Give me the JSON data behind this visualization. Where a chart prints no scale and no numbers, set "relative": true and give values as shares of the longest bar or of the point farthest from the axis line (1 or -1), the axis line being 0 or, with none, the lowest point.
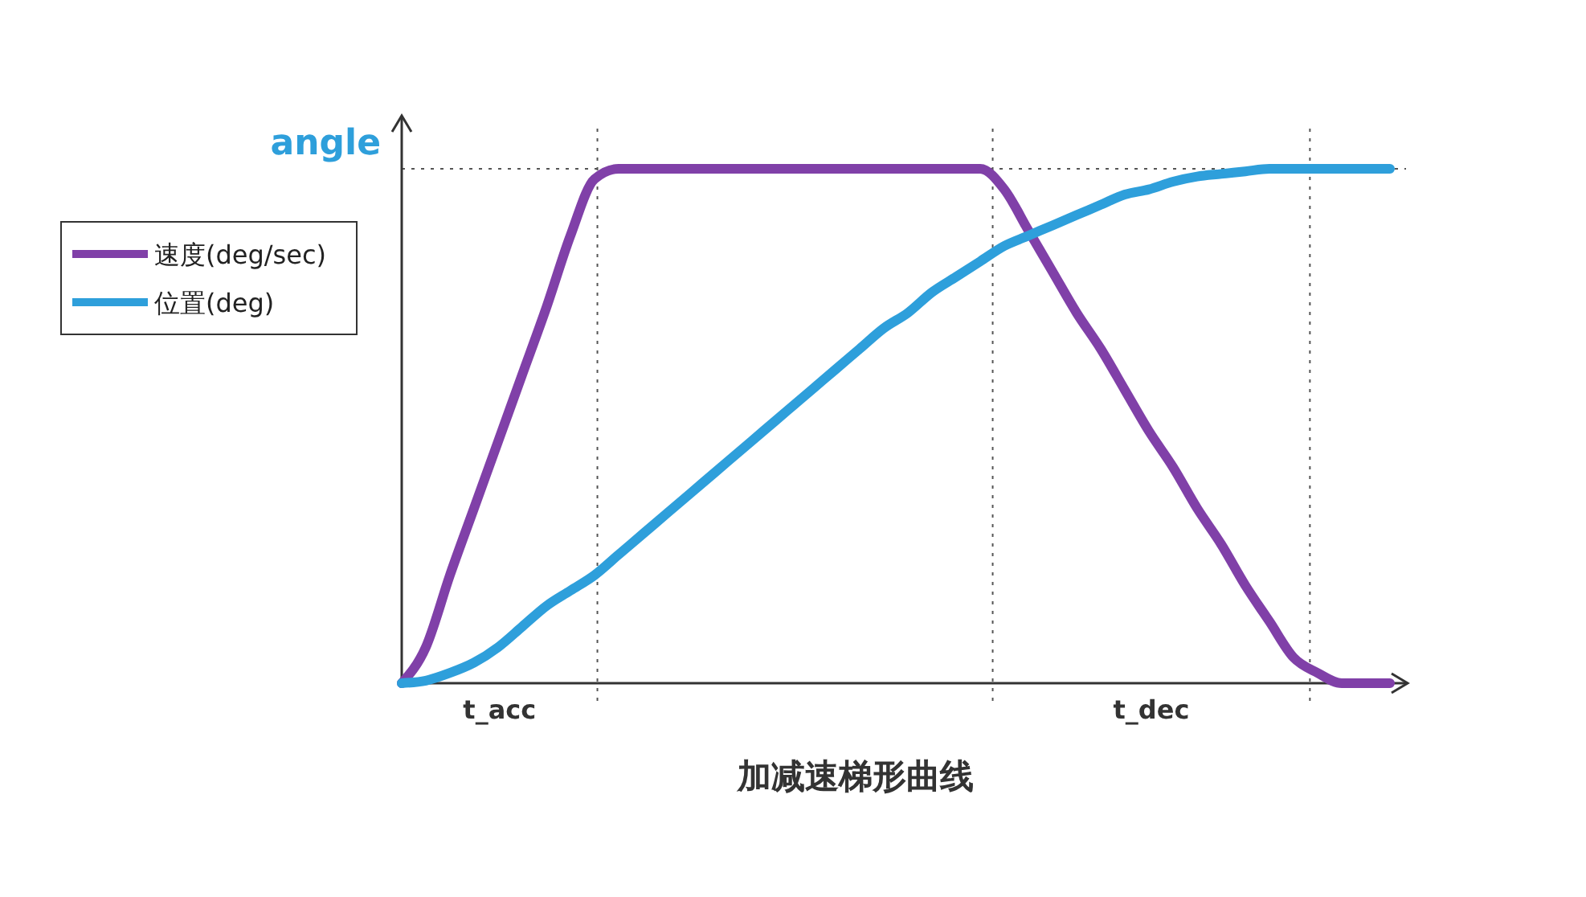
{
  "chart_data": {
    "type": "line",
    "title": "加减速梯形曲线",
    "ylabel": "angle",
    "relative": true,
    "categories": [
      null,
      null,
      null,
      null,
      null,
      null,
      null,
      null,
      null,
      null,
      null,
      null,
      null,
      null,
      null,
      null,
      null,
      null,
      null,
      null,
      null,
      null,
      null,
      null,
      null,
      null,
      null,
      null,
      null,
      null,
      null,
      null,
      null,
      null,
      null,
      null,
      null,
      null,
      null,
      null,
      null,
      null
    ],
    "series": [
      {
        "name": "速度(deg/sec)",
        "color": "#8040a8",
        "values": [
          0,
          0.07,
          0.21,
          0.34,
          0.47,
          0.6,
          0.73,
          0.87,
          0.98,
          1,
          1,
          1,
          1,
          1,
          1,
          1,
          1,
          1,
          1,
          1,
          1,
          1,
          1,
          1,
          1,
          0.96,
          0.88,
          0.8,
          0.72,
          0.65,
          0.57,
          0.49,
          0.42,
          0.34,
          0.27,
          0.19,
          0.12,
          0.05,
          0.02,
          0,
          0,
          0
        ]
      },
      {
        "name": "位置(deg)",
        "color": "#2e9fdb",
        "values": [
          0,
          0.005,
          0.02,
          0.04,
          0.07,
          0.11,
          0.15,
          0.18,
          0.21,
          0.25,
          0.29,
          0.33,
          0.37,
          0.41,
          0.45,
          0.49,
          0.53,
          0.57,
          0.61,
          0.65,
          0.69,
          0.72,
          0.76,
          0.79,
          0.82,
          0.85,
          0.87,
          0.89,
          0.91,
          0.93,
          0.95,
          0.96,
          0.975,
          0.985,
          0.99,
          0.995,
          1,
          1,
          1,
          1,
          1,
          1
        ]
      }
    ],
    "annotations": [
      "t_acc",
      "t_dec"
    ],
    "legend": "left",
    "line_style": "solid",
    "marker": "none"
  }
}
